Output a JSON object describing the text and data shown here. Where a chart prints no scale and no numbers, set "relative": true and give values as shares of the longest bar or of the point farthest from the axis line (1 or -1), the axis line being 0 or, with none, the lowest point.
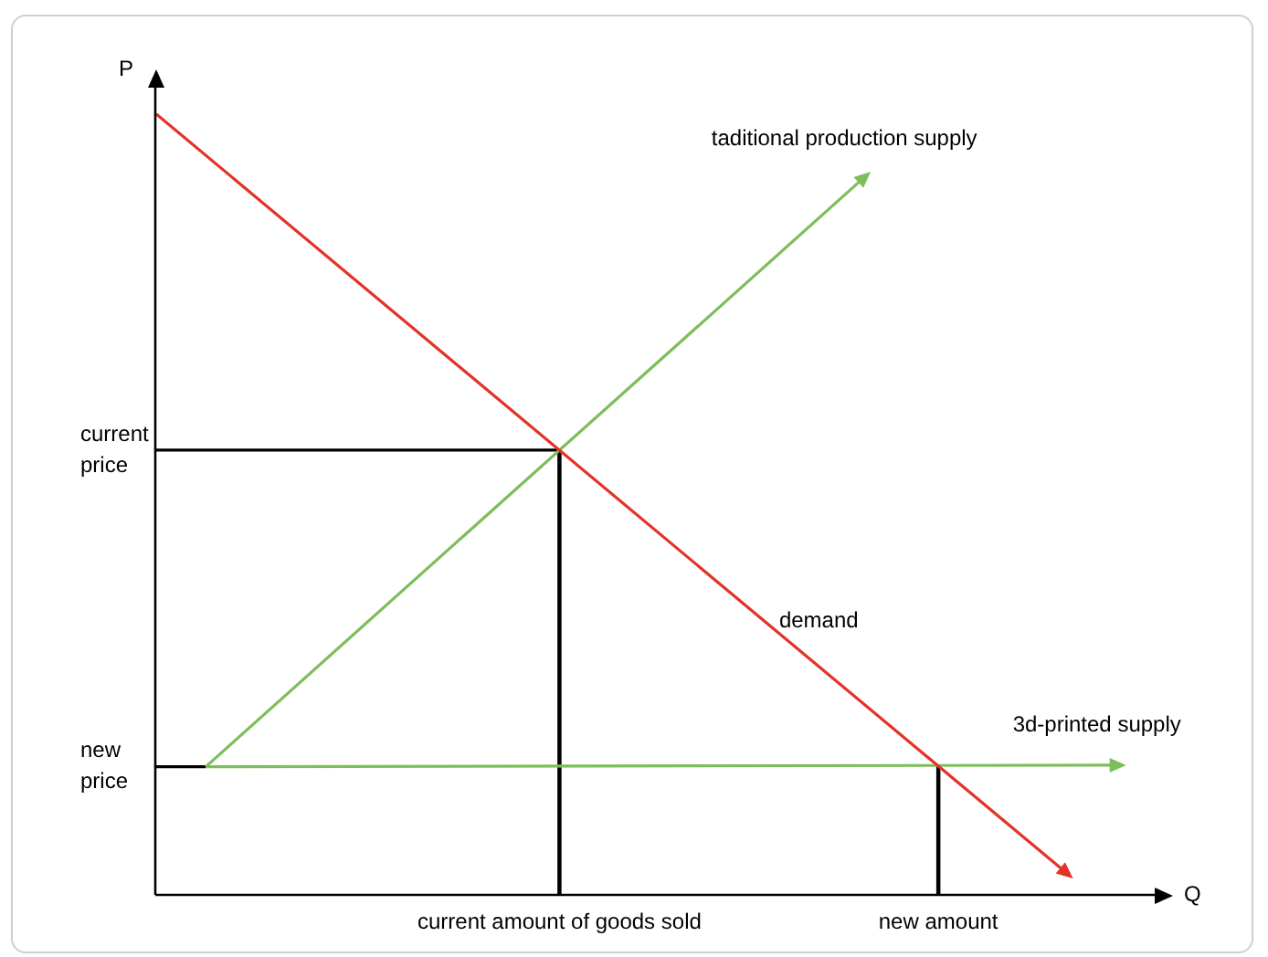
{
  "chart_data": {
    "type": "line",
    "relative": true,
    "xlabel": "Q",
    "ylabel": "P",
    "grid": false,
    "legend": false,
    "categories": [
      null,
      null,
      null,
      null,
      null,
      null,
      null,
      null,
      null,
      null,
      null,
      null,
      null,
      null,
      null,
      null,
      "current amount of goods sold",
      null,
      null,
      null,
      null,
      null,
      null,
      null,
      null,
      null,
      null,
      null,
      null,
      null,
      null,
      "new amount",
      null,
      null,
      null,
      null,
      null,
      null,
      null,
      null,
      null
    ],
    "series": [
      {
        "name": "demand",
        "color": "#e2332b",
        "values": [
          1,
          null,
          null,
          null,
          null,
          null,
          null,
          null,
          null,
          null,
          null,
          null,
          null,
          null,
          null,
          null,
          null,
          null,
          null,
          null,
          null,
          null,
          null,
          null,
          null,
          null,
          null,
          null,
          null,
          null,
          null,
          null,
          null,
          null,
          null,
          null,
          0.03,
          null,
          null,
          null,
          null
        ]
      },
      {
        "name": "taditional production supply",
        "color": "#7dbe5c",
        "values": [
          null,
          null,
          0.164,
          null,
          null,
          null,
          null,
          null,
          null,
          null,
          null,
          null,
          null,
          null,
          null,
          null,
          null,
          null,
          null,
          null,
          null,
          null,
          null,
          null,
          null,
          null,
          null,
          null,
          0.916,
          null,
          null,
          null,
          null,
          null,
          null,
          null,
          null,
          null,
          null,
          null,
          null
        ]
      },
      {
        "name": "3d-printed supply",
        "color": "#7dbe5c",
        "values": [
          null,
          null,
          0.164,
          null,
          null,
          null,
          null,
          null,
          null,
          null,
          null,
          null,
          null,
          null,
          null,
          null,
          null,
          null,
          null,
          null,
          null,
          null,
          null,
          null,
          null,
          null,
          null,
          null,
          null,
          null,
          null,
          null,
          null,
          null,
          null,
          null,
          null,
          null,
          0.166,
          null,
          null
        ]
      },
      {
        "color": "#000000",
        "values": [
          0.569,
          null,
          null,
          null,
          null,
          null,
          null,
          null,
          null,
          null,
          null,
          null,
          null,
          null,
          null,
          null,
          0.569,
          null,
          null,
          null,
          null,
          null,
          null,
          null,
          null,
          null,
          null,
          null,
          null,
          null,
          null,
          null,
          null,
          null,
          null,
          null,
          null,
          null,
          null,
          null,
          null
        ]
      },
      {
        "color": "#000000",
        "values": [
          0.164,
          null,
          0.164,
          null,
          null,
          null,
          null,
          null,
          null,
          null,
          null,
          null,
          null,
          null,
          null,
          null,
          null,
          null,
          null,
          null,
          null,
          null,
          null,
          null,
          null,
          null,
          null,
          null,
          null,
          null,
          null,
          null,
          null,
          null,
          null,
          null,
          null,
          null,
          null,
          null,
          null
        ]
      },
      {
        "type": "bar",
        "color": "#000000",
        "values": [
          null,
          null,
          null,
          null,
          null,
          null,
          null,
          null,
          null,
          null,
          null,
          null,
          null,
          null,
          null,
          null,
          0.569,
          null,
          null,
          null,
          null,
          null,
          null,
          null,
          null,
          null,
          null,
          null,
          null,
          null,
          null,
          0.164,
          null,
          null,
          null,
          null,
          null,
          null,
          null,
          null,
          null
        ]
      }
    ],
    "annotations": [
      "current price",
      "new price"
    ]
  }
}
